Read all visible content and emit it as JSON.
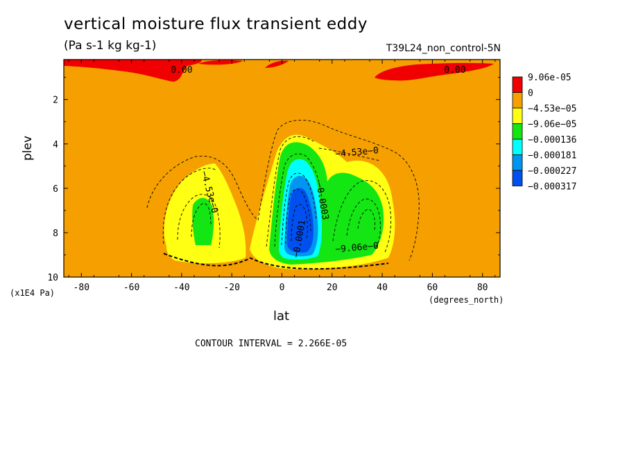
{
  "chart_data": {
    "type": "contour",
    "title": "vertical moisture flux transient eddy",
    "units": "(Pa s-1 kg kg-1)",
    "run_label": "T39L24_non_control-5N",
    "xlabel": "lat",
    "x_unit": "(degrees_north)",
    "ylabel": "plev",
    "y_unit": "(x1E4 Pa)",
    "xlim": [
      -87,
      87
    ],
    "ylim": [
      0.2,
      10
    ],
    "y_inverted": true,
    "x_ticks": [
      "-80",
      "-60",
      "-40",
      "-20",
      "0",
      "20",
      "40",
      "60",
      "80"
    ],
    "x_tick_values": [
      -80,
      -60,
      -40,
      -20,
      0,
      20,
      40,
      60,
      80
    ],
    "y_ticks": [
      "2",
      "4",
      "6",
      "8",
      "10"
    ],
    "y_tick_values": [
      2,
      4,
      6,
      8,
      10
    ],
    "contour_interval": "CONTOUR INTERVAL = 2.266E-05",
    "legend": [
      {
        "label": "9.06e-05",
        "color": "#f00000"
      },
      {
        "label": "0",
        "color": "#f5a000"
      },
      {
        "label": "−4.53e−05",
        "color": "#ffff14"
      },
      {
        "label": "−9.06e−05",
        "color": "#14e614"
      },
      {
        "label": "−0.000136",
        "color": "#00ffff"
      },
      {
        "label": "−0.000181",
        "color": "#0096f0"
      },
      {
        "label": "−0.000227",
        "color": "#0050f0"
      },
      {
        "label": "−0.000317",
        "color": "#0050f0"
      }
    ],
    "contour_labels": [
      {
        "text": "0.00",
        "lat": -40,
        "plev": 0.8
      },
      {
        "text": "0.00",
        "lat": 69,
        "plev": 0.8
      },
      {
        "text": "−4.53e−0",
        "lat": 30,
        "plev": 4.5
      },
      {
        "text": "−4.53e−0",
        "lat": -30,
        "plev": 6.2
      },
      {
        "text": "−0.0003",
        "lat": 15,
        "plev": 6.6
      },
      {
        "text": "−0.0001",
        "lat": 8,
        "plev": 8.3
      },
      {
        "text": "−9.06e−0",
        "lat": 30,
        "plev": 8.8
      }
    ],
    "features": [
      {
        "region": "southern midlatitude eddy",
        "center_lat": -32,
        "center_plev": 7.2,
        "min_value": -9.06e-05
      },
      {
        "region": "equatorial eddy",
        "center_lat": 6,
        "center_plev": 7.2,
        "min_value": -0.000317
      },
      {
        "region": "northern midlatitude eddy",
        "center_lat": 36,
        "center_plev": 7.2,
        "min_value": -9.06e-05
      },
      {
        "region": "upper positive flux bands",
        "plev": 0.6,
        "max_value": 9.06e-05
      }
    ]
  }
}
